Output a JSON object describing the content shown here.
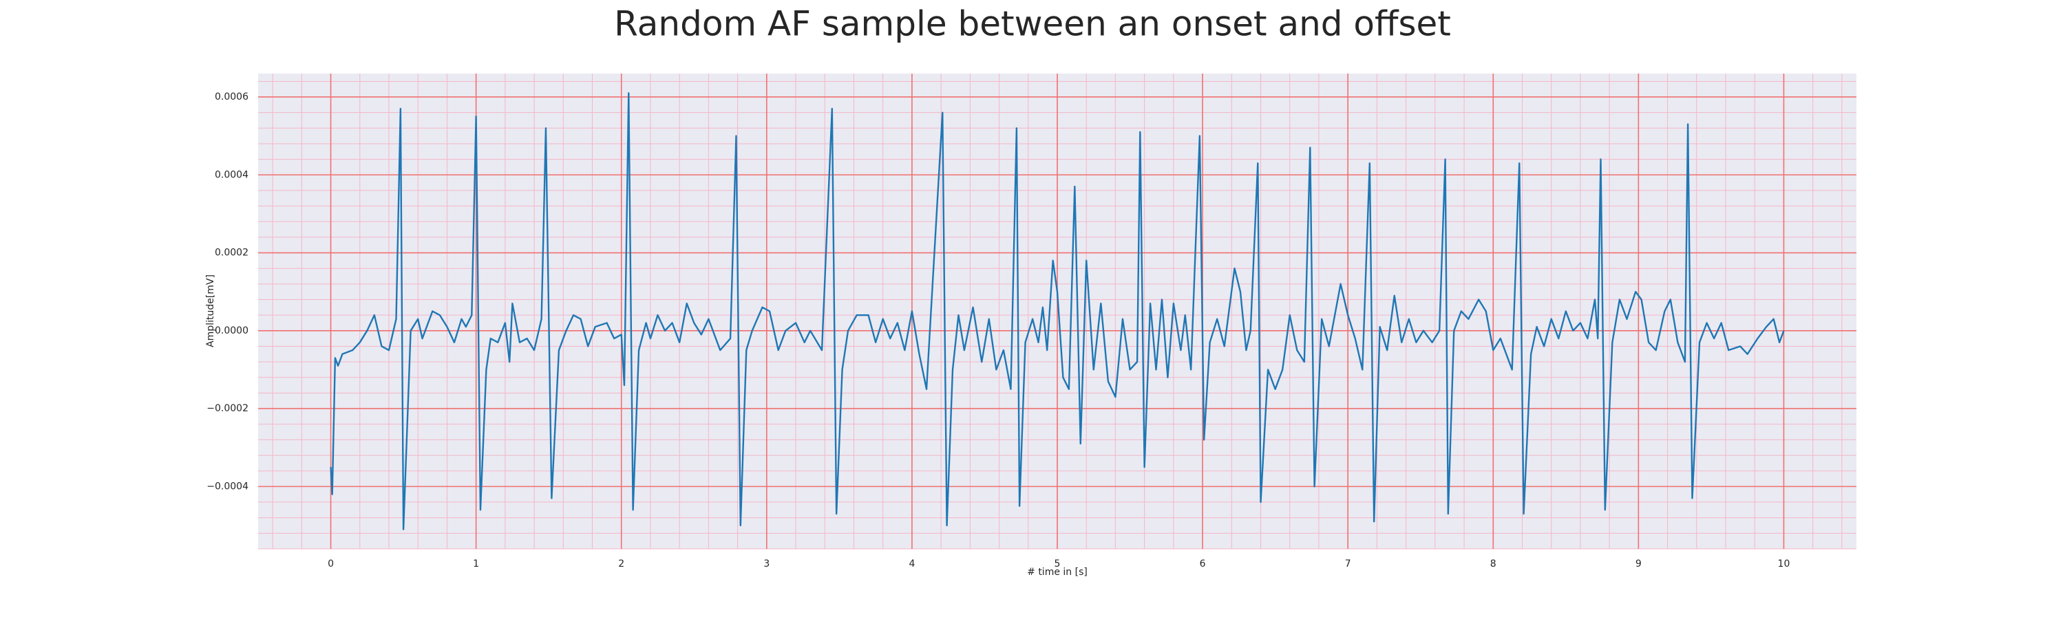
{
  "chart_data": {
    "type": "line",
    "title": "Random AF sample between an onset and offset",
    "xlabel": "# time in [s]",
    "ylabel": "Amplitude[mV]",
    "xlim": [
      -0.5,
      10.5
    ],
    "ylim": [
      -0.00056,
      0.00066
    ],
    "xticks": [
      0,
      1,
      2,
      3,
      4,
      5,
      6,
      7,
      8,
      9,
      10
    ],
    "yticks": [
      {
        "value": -0.0004,
        "label": "−0.0004"
      },
      {
        "value": -0.0002,
        "label": "−0.0002"
      },
      {
        "value": 0,
        "label": "0.0000"
      },
      {
        "value": 0.0002,
        "label": "0.0002"
      },
      {
        "value": 0.0004,
        "label": "0.0004"
      },
      {
        "value": 0.0006,
        "label": "0.0006"
      }
    ],
    "xminorticks": [
      -0.4,
      -0.2,
      0.2,
      0.4,
      0.6,
      0.8,
      1.2,
      1.4,
      1.6,
      1.8,
      2.2,
      2.4,
      2.6,
      2.8,
      3.2,
      3.4,
      3.6,
      3.8,
      4.2,
      4.4,
      4.6,
      4.8,
      5.2,
      5.4,
      5.6,
      5.8,
      6.2,
      6.4,
      6.6,
      6.8,
      7.2,
      7.4,
      7.6,
      7.8,
      8.2,
      8.4,
      8.6,
      8.8,
      9.2,
      9.4,
      9.6,
      9.8,
      10.2,
      10.4
    ],
    "yminorticks": [
      -0.00056,
      -0.00052,
      -0.00048,
      -0.00044,
      -0.00036,
      -0.00032,
      -0.00028,
      -0.00024,
      -0.00016,
      -0.00012,
      -8e-05,
      -4e-05,
      4e-05,
      8e-05,
      0.00012,
      0.00016,
      0.00024,
      0.00028,
      0.00032,
      0.00036,
      0.00044,
      0.00048,
      0.00052,
      0.00056,
      0.00064
    ],
    "grid": true,
    "minor_grid": true,
    "color": "#1f77b4",
    "x": [
      0,
      0.01,
      0.03,
      0.05,
      0.08,
      0.15,
      0.2,
      0.25,
      0.3,
      0.35,
      0.4,
      0.45,
      0.48,
      0.5,
      0.55,
      0.6,
      0.63,
      0.7,
      0.75,
      0.8,
      0.85,
      0.9,
      0.93,
      0.97,
      1.0,
      1.03,
      1.07,
      1.1,
      1.15,
      1.2,
      1.23,
      1.25,
      1.3,
      1.35,
      1.4,
      1.45,
      1.48,
      1.52,
      1.57,
      1.62,
      1.67,
      1.72,
      1.77,
      1.82,
      1.9,
      1.95,
      2.0,
      2.02,
      2.05,
      2.08,
      2.12,
      2.17,
      2.2,
      2.25,
      2.3,
      2.35,
      2.4,
      2.45,
      2.5,
      2.55,
      2.6,
      2.68,
      2.75,
      2.79,
      2.82,
      2.86,
      2.9,
      2.97,
      3.02,
      3.08,
      3.13,
      3.2,
      3.26,
      3.3,
      3.38,
      3.45,
      3.48,
      3.52,
      3.56,
      3.62,
      3.7,
      3.75,
      3.8,
      3.85,
      3.9,
      3.95,
      4.0,
      4.05,
      4.1,
      4.21,
      4.24,
      4.28,
      4.32,
      4.36,
      4.42,
      4.48,
      4.53,
      4.58,
      4.63,
      4.68,
      4.72,
      4.74,
      4.78,
      4.83,
      4.87,
      4.9,
      4.93,
      4.97,
      5.0,
      5.04,
      5.08,
      5.12,
      5.16,
      5.2,
      5.25,
      5.3,
      5.35,
      5.4,
      5.45,
      5.5,
      5.55,
      5.57,
      5.6,
      5.64,
      5.68,
      5.72,
      5.76,
      5.8,
      5.85,
      5.88,
      5.92,
      5.98,
      6.01,
      6.05,
      6.1,
      6.15,
      6.22,
      6.26,
      6.3,
      6.33,
      6.38,
      6.4,
      6.45,
      6.5,
      6.55,
      6.6,
      6.65,
      6.7,
      6.74,
      6.77,
      6.82,
      6.87,
      6.95,
      7.0,
      7.05,
      7.1,
      7.15,
      7.18,
      7.22,
      7.27,
      7.32,
      7.37,
      7.42,
      7.47,
      7.52,
      7.58,
      7.63,
      7.67,
      7.69,
      7.73,
      7.78,
      7.83,
      7.9,
      7.95,
      8.0,
      8.05,
      8.13,
      8.18,
      8.21,
      8.26,
      8.3,
      8.35,
      8.4,
      8.45,
      8.5,
      8.55,
      8.6,
      8.65,
      8.7,
      8.72,
      8.74,
      8.77,
      8.82,
      8.87,
      8.92,
      8.98,
      9.02,
      9.07,
      9.12,
      9.18,
      9.22,
      9.27,
      9.32,
      9.34,
      9.37,
      9.42,
      9.47,
      9.52,
      9.57,
      9.62,
      9.7,
      9.75,
      9.82,
      9.88,
      9.93,
      9.97,
      10.0
    ],
    "values": [
      -0.00035,
      -0.00042,
      -7e-05,
      -9e-05,
      -6e-05,
      -5e-05,
      -3e-05,
      0,
      4e-05,
      -4e-05,
      -5e-05,
      3e-05,
      0.00057,
      -0.00051,
      0,
      3e-05,
      -2e-05,
      5e-05,
      4e-05,
      1e-05,
      -3e-05,
      3e-05,
      1e-05,
      4e-05,
      0.00055,
      -0.00046,
      -0.0001,
      -2e-05,
      -3e-05,
      2e-05,
      -8e-05,
      7e-05,
      -3e-05,
      -2e-05,
      -5e-05,
      3e-05,
      0.00052,
      -0.00043,
      -5e-05,
      0,
      4e-05,
      3e-05,
      -4e-05,
      1e-05,
      2e-05,
      -2e-05,
      -1e-05,
      -0.00014,
      0.00061,
      -0.00046,
      -5e-05,
      2e-05,
      -2e-05,
      4e-05,
      0,
      2e-05,
      -3e-05,
      7e-05,
      2e-05,
      -1e-05,
      3e-05,
      -5e-05,
      -2e-05,
      0.0005,
      -0.0005,
      -5e-05,
      0,
      6e-05,
      5e-05,
      -5e-05,
      0,
      2e-05,
      -3e-05,
      0,
      -5e-05,
      0.00057,
      -0.00047,
      -0.0001,
      0,
      4e-05,
      4e-05,
      -3e-05,
      3e-05,
      -2e-05,
      2e-05,
      -5e-05,
      5e-05,
      -6e-05,
      -0.00015,
      0.00056,
      -0.0005,
      -0.0001,
      4e-05,
      -5e-05,
      6e-05,
      -8e-05,
      3e-05,
      -0.0001,
      -5e-05,
      -0.00015,
      0.00052,
      -0.00045,
      -3e-05,
      3e-05,
      -3e-05,
      6e-05,
      -5e-05,
      0.00018,
      0.0001,
      -0.00012,
      -0.00015,
      0.00037,
      -0.00029,
      0.00018,
      -0.0001,
      7e-05,
      -0.00013,
      -0.00017,
      3e-05,
      -0.0001,
      -8e-05,
      0.00051,
      -0.00035,
      7e-05,
      -0.0001,
      8e-05,
      -0.00012,
      7e-05,
      -5e-05,
      4e-05,
      -0.0001,
      0.0005,
      -0.00028,
      -3e-05,
      3e-05,
      -4e-05,
      0.00016,
      0.0001,
      -5e-05,
      0,
      0.00043,
      -0.00044,
      -0.0001,
      -0.00015,
      -0.0001,
      4e-05,
      -5e-05,
      -8e-05,
      0.00047,
      -0.0004,
      3e-05,
      -4e-05,
      0.00012,
      4e-05,
      -2e-05,
      -0.0001,
      0.00043,
      -0.00049,
      1e-05,
      -5e-05,
      9e-05,
      -3e-05,
      3e-05,
      -3e-05,
      0,
      -3e-05,
      0,
      0.00044,
      -0.00047,
      0,
      5e-05,
      3e-05,
      8e-05,
      5e-05,
      -5e-05,
      -2e-05,
      -0.0001,
      0.00043,
      -0.00047,
      -6e-05,
      1e-05,
      -4e-05,
      3e-05,
      -2e-05,
      5e-05,
      0,
      2e-05,
      -2e-05,
      8e-05,
      -2e-05,
      0.00044,
      -0.00046,
      -3e-05,
      8e-05,
      3e-05,
      0.0001,
      8e-05,
      -3e-05,
      -5e-05,
      5e-05,
      8e-05,
      -3e-05,
      -8e-05,
      0.00053,
      -0.00043,
      -3e-05,
      2e-05,
      -2e-05,
      2e-05,
      -5e-05,
      -4e-05,
      -6e-05,
      -2e-05,
      1e-05,
      3e-05,
      -3e-05,
      0
    ]
  }
}
